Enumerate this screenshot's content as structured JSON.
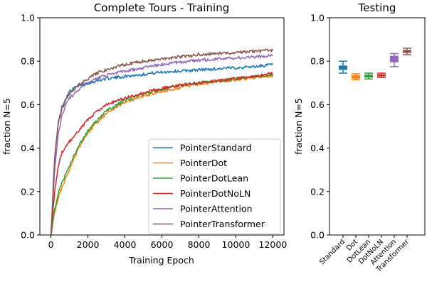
{
  "chart_data": [
    {
      "type": "line",
      "title": "Complete Tours - Training",
      "xlabel": "Training Epoch",
      "ylabel": "fraction N=5",
      "xlim": [
        -600,
        12600
      ],
      "ylim": [
        0.0,
        1.0
      ],
      "xticks": [
        "0",
        "2000",
        "4000",
        "6000",
        "8000",
        "10000",
        "12000"
      ],
      "xtick_values": [
        0,
        2000,
        4000,
        6000,
        8000,
        10000,
        12000
      ],
      "yticks": [
        "0.0",
        "0.2",
        "0.4",
        "0.6",
        "0.8",
        "1.0"
      ],
      "ytick_values": [
        0.0,
        0.2,
        0.4,
        0.6,
        0.8,
        1.0
      ],
      "legend_position": "lower-right",
      "x": [
        0,
        200,
        400,
        600,
        800,
        1000,
        1500,
        2000,
        2500,
        3000,
        4000,
        5000,
        6000,
        7000,
        8000,
        9000,
        10000,
        11000,
        12000
      ],
      "series": [
        {
          "name": "PointerStandard",
          "color": "#1f77b4",
          "values": [
            0.0,
            0.35,
            0.52,
            0.59,
            0.63,
            0.66,
            0.69,
            0.7,
            0.71,
            0.72,
            0.73,
            0.74,
            0.75,
            0.755,
            0.76,
            0.765,
            0.77,
            0.775,
            0.785
          ]
        },
        {
          "name": "PointerDot",
          "color": "#ff7f0e",
          "values": [
            0.0,
            0.1,
            0.17,
            0.22,
            0.26,
            0.3,
            0.4,
            0.47,
            0.52,
            0.56,
            0.61,
            0.64,
            0.66,
            0.68,
            0.695,
            0.705,
            0.715,
            0.725,
            0.735
          ]
        },
        {
          "name": "PointerDotLean",
          "color": "#2ca02c",
          "values": [
            0.0,
            0.12,
            0.19,
            0.24,
            0.28,
            0.32,
            0.41,
            0.48,
            0.53,
            0.57,
            0.62,
            0.65,
            0.67,
            0.69,
            0.7,
            0.71,
            0.72,
            0.73,
            0.74
          ]
        },
        {
          "name": "PointerDotNoLN",
          "color": "#d62728",
          "values": [
            0.0,
            0.2,
            0.32,
            0.38,
            0.41,
            0.43,
            0.48,
            0.53,
            0.57,
            0.6,
            0.63,
            0.655,
            0.675,
            0.69,
            0.7,
            0.71,
            0.72,
            0.73,
            0.745
          ]
        },
        {
          "name": "PointerAttention",
          "color": "#9467bd",
          "values": [
            0.0,
            0.3,
            0.47,
            0.55,
            0.6,
            0.63,
            0.67,
            0.7,
            0.72,
            0.735,
            0.755,
            0.77,
            0.785,
            0.795,
            0.805,
            0.81,
            0.815,
            0.82,
            0.825
          ]
        },
        {
          "name": "PointerTransformer",
          "color": "#8c564b",
          "values": [
            0.0,
            0.36,
            0.52,
            0.58,
            0.62,
            0.65,
            0.69,
            0.72,
            0.745,
            0.76,
            0.785,
            0.8,
            0.81,
            0.82,
            0.83,
            0.835,
            0.84,
            0.845,
            0.85
          ]
        }
      ]
    },
    {
      "type": "box",
      "title": "Testing",
      "xlabel": "",
      "ylabel": "fraction N=5",
      "ylim": [
        0.0,
        1.0
      ],
      "yticks": [
        "0.0",
        "0.2",
        "0.4",
        "0.6",
        "0.8",
        "1.0"
      ],
      "ytick_values": [
        0.0,
        0.2,
        0.4,
        0.6,
        0.8,
        1.0
      ],
      "categories": [
        "Standard",
        "Dot",
        "DotLean",
        "DotNoLN",
        "Attention",
        "Transformer"
      ],
      "boxes": [
        {
          "color": "#1f77b4",
          "whisker_low": 0.745,
          "q1": 0.76,
          "median": 0.772,
          "q3": 0.78,
          "whisker_high": 0.8
        },
        {
          "color": "#ff7f0e",
          "whisker_low": 0.715,
          "q1": 0.72,
          "median": 0.728,
          "q3": 0.735,
          "whisker_high": 0.742
        },
        {
          "color": "#2ca02c",
          "whisker_low": 0.718,
          "q1": 0.725,
          "median": 0.732,
          "q3": 0.738,
          "whisker_high": 0.745
        },
        {
          "color": "#d62728",
          "whisker_low": 0.725,
          "q1": 0.73,
          "median": 0.735,
          "q3": 0.74,
          "whisker_high": 0.745
        },
        {
          "color": "#9467bd",
          "whisker_low": 0.775,
          "q1": 0.795,
          "median": 0.81,
          "q3": 0.825,
          "whisker_high": 0.835
        },
        {
          "color": "#8c564b",
          "whisker_low": 0.83,
          "q1": 0.838,
          "median": 0.845,
          "q3": 0.852,
          "whisker_high": 0.86
        }
      ]
    }
  ]
}
